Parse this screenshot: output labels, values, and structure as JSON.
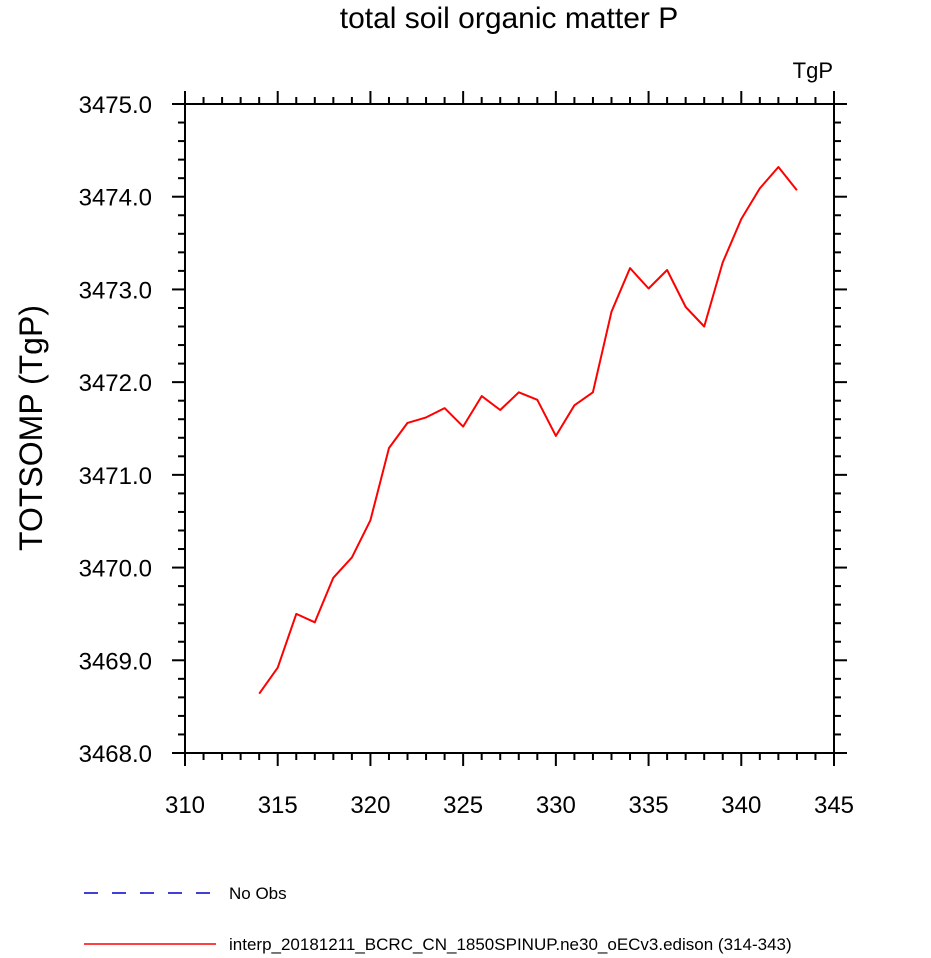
{
  "chart_data": {
    "type": "line",
    "title": "total soil organic matter P",
    "units_label": "TgP",
    "ylabel": "TOTSOMP  (TgP)",
    "xlabel": "",
    "xlim": [
      310,
      345
    ],
    "ylim": [
      3468.0,
      3475.0
    ],
    "x_ticks": [
      310,
      315,
      320,
      325,
      330,
      335,
      340,
      345
    ],
    "x_tick_labels": [
      "310",
      "315",
      "320",
      "325",
      "330",
      "335",
      "340",
      "345"
    ],
    "y_ticks": [
      3468.0,
      3469.0,
      3470.0,
      3471.0,
      3472.0,
      3473.0,
      3474.0,
      3475.0
    ],
    "y_tick_labels": [
      "3468.0",
      "3469.0",
      "3470.0",
      "3471.0",
      "3472.0",
      "3473.0",
      "3474.0",
      "3475.0"
    ],
    "grid": false,
    "legend_position": "bottom",
    "series": [
      {
        "name": "No Obs",
        "color": "#0000cc",
        "style": "dashed",
        "x": [],
        "y": []
      },
      {
        "name": "interp_20181211_BCRC_CN_1850SPINUP.ne30_oECv3.edison (314-343)",
        "color": "#ff0000",
        "style": "solid",
        "x": [
          314,
          315,
          316,
          317,
          318,
          319,
          320,
          321,
          322,
          323,
          324,
          325,
          326,
          327,
          328,
          329,
          330,
          331,
          332,
          333,
          334,
          335,
          336,
          337,
          338,
          339,
          340,
          341,
          342,
          343
        ],
        "y": [
          3468.64,
          3468.92,
          3469.5,
          3469.41,
          3469.89,
          3470.11,
          3470.51,
          3471.29,
          3471.56,
          3471.62,
          3471.72,
          3471.52,
          3471.85,
          3471.7,
          3471.89,
          3471.81,
          3471.42,
          3471.75,
          3471.89,
          3472.76,
          3473.23,
          3473.01,
          3473.21,
          3472.81,
          3472.6,
          3473.29,
          3473.76,
          3474.09,
          3474.32,
          3474.07
        ]
      }
    ]
  }
}
